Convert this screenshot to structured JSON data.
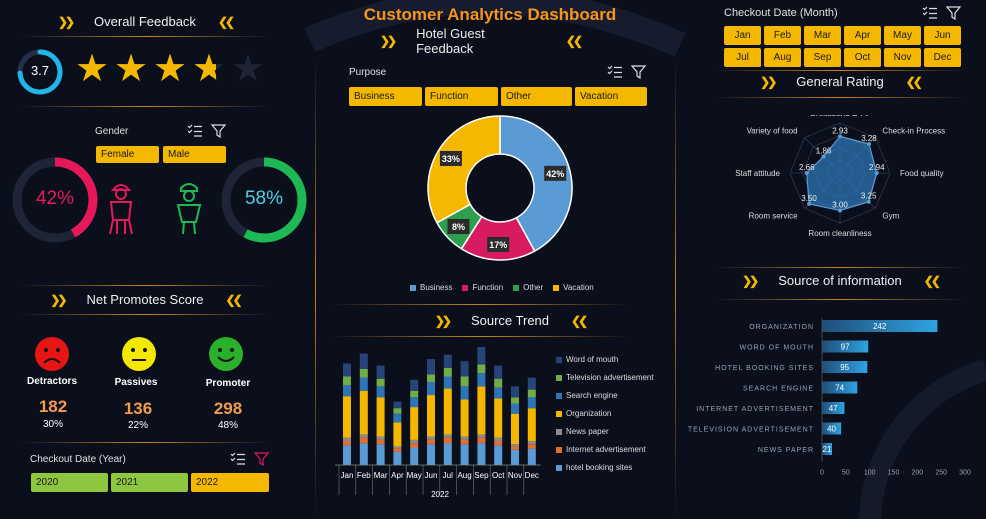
{
  "title": "Customer Analytics Dashboard",
  "subtitle": "Hotel Guest Feedback",
  "overall_feedback": {
    "header": "Overall Feedback",
    "score": "3.7",
    "stars": 3.7,
    "max_stars": 5
  },
  "gender": {
    "label": "Gender",
    "buttons": [
      "Female",
      "Male"
    ],
    "female_pct": "42%",
    "male_pct": "58%",
    "female_value": 42,
    "male_value": 58
  },
  "nps": {
    "header": "Net Promotes Score",
    "groups": [
      {
        "label": "Detractors",
        "count": "182",
        "pct": "30%"
      },
      {
        "label": "Passives",
        "count": "136",
        "pct": "22%"
      },
      {
        "label": "Promoter",
        "count": "298",
        "pct": "48%"
      }
    ]
  },
  "checkout_year": {
    "label": "Checkout Date (Year)",
    "years": [
      "2020",
      "2021",
      "2022"
    ]
  },
  "purpose": {
    "label": "Purpose",
    "buttons": [
      "Business",
      "Function",
      "Other",
      "Vacation"
    ],
    "chart_data": {
      "type": "pie",
      "slices": [
        {
          "name": "Business",
          "value": 42,
          "label": "42%",
          "color": "#5b9bd5"
        },
        {
          "name": "Function",
          "value": 17,
          "label": "17%",
          "color": "#d81b60"
        },
        {
          "name": "Other",
          "value": 8,
          "label": "8%",
          "color": "#2e9e4f"
        },
        {
          "name": "Vacation",
          "value": 33,
          "label": "33%",
          "color": "#f5b800"
        }
      ]
    }
  },
  "source_trend": {
    "header": "Source Trend",
    "year_label": "2022",
    "chart_data": {
      "type": "bar",
      "stacked": true,
      "categories": [
        "Jan",
        "Feb",
        "Mar",
        "Apr",
        "May",
        "Jun",
        "Jul",
        "Aug",
        "Sep",
        "Oct",
        "Nov",
        "Dec"
      ],
      "series": [
        {
          "name": "hotel booking sites",
          "color": "#5b9bd5",
          "values": [
            18,
            20,
            19,
            12,
            16,
            19,
            20,
            19,
            20,
            18,
            14,
            15
          ]
        },
        {
          "name": "Internet advertisement",
          "color": "#e46c2c",
          "values": [
            4,
            5,
            4,
            3,
            4,
            4,
            5,
            4,
            5,
            4,
            3,
            4
          ]
        },
        {
          "name": "News paper",
          "color": "#8c8c8c",
          "values": [
            3,
            3,
            3,
            2,
            3,
            3,
            3,
            3,
            3,
            3,
            2,
            3
          ]
        },
        {
          "name": "Organization",
          "color": "#f5b800",
          "values": [
            38,
            40,
            36,
            22,
            30,
            38,
            42,
            34,
            44,
            36,
            28,
            30
          ]
        },
        {
          "name": "Search engine",
          "color": "#2e75b6",
          "values": [
            10,
            12,
            10,
            8,
            9,
            12,
            11,
            12,
            12,
            10,
            9,
            10
          ]
        },
        {
          "name": "Television advertisement",
          "color": "#70ad47",
          "values": [
            8,
            8,
            7,
            5,
            6,
            7,
            8,
            9,
            8,
            8,
            6,
            7
          ]
        },
        {
          "name": "Word of mouth",
          "color": "#264478",
          "values": [
            12,
            14,
            12,
            6,
            10,
            14,
            12,
            14,
            16,
            12,
            10,
            11
          ]
        }
      ]
    }
  },
  "checkout_month": {
    "label": "Checkout Date (Month)",
    "months": [
      "Jan",
      "Feb",
      "Mar",
      "Apr",
      "May",
      "Jun",
      "Jul",
      "Aug",
      "Sep",
      "Oct",
      "Nov",
      "Dec"
    ]
  },
  "general_rating": {
    "header": "General Rating",
    "chart_data": {
      "type": "radar",
      "axes": [
        "Broadband & TV",
        "Check-in Process",
        "Food quality",
        "Gym",
        "Room cleanliness",
        "Room service",
        "Staff attitude",
        "Variety of food"
      ],
      "values": [
        2.93,
        3.28,
        2.94,
        3.25,
        3.0,
        3.5,
        2.66,
        1.86
      ],
      "value_labels": [
        "2.93",
        "3.28",
        "2.94",
        "3.25",
        "3.00",
        "3.50",
        "2.66",
        "1.86"
      ],
      "max": 4
    }
  },
  "source_info": {
    "header": "Source of information",
    "chart_data": {
      "type": "bar",
      "orientation": "horizontal",
      "categories": [
        "ORGANIZATION",
        "WORD OF MOUTH",
        "HOTEL BOOKING SITES",
        "SEARCH ENGINE",
        "INTERNET ADVERTISEMENT",
        "TELEVISION ADVERTISEMENT",
        "NEWS PAPER"
      ],
      "values": [
        242,
        97,
        95,
        74,
        47,
        40,
        21
      ],
      "xlim": [
        0,
        300
      ],
      "xticks": [
        "0",
        "50",
        "100",
        "150",
        "200",
        "250",
        "300"
      ]
    }
  },
  "colors": {
    "accent": "#f5b800",
    "orange": "#f7941d",
    "female": "#e5195a",
    "male": "#1db954",
    "bg": "#0b0f1c"
  }
}
